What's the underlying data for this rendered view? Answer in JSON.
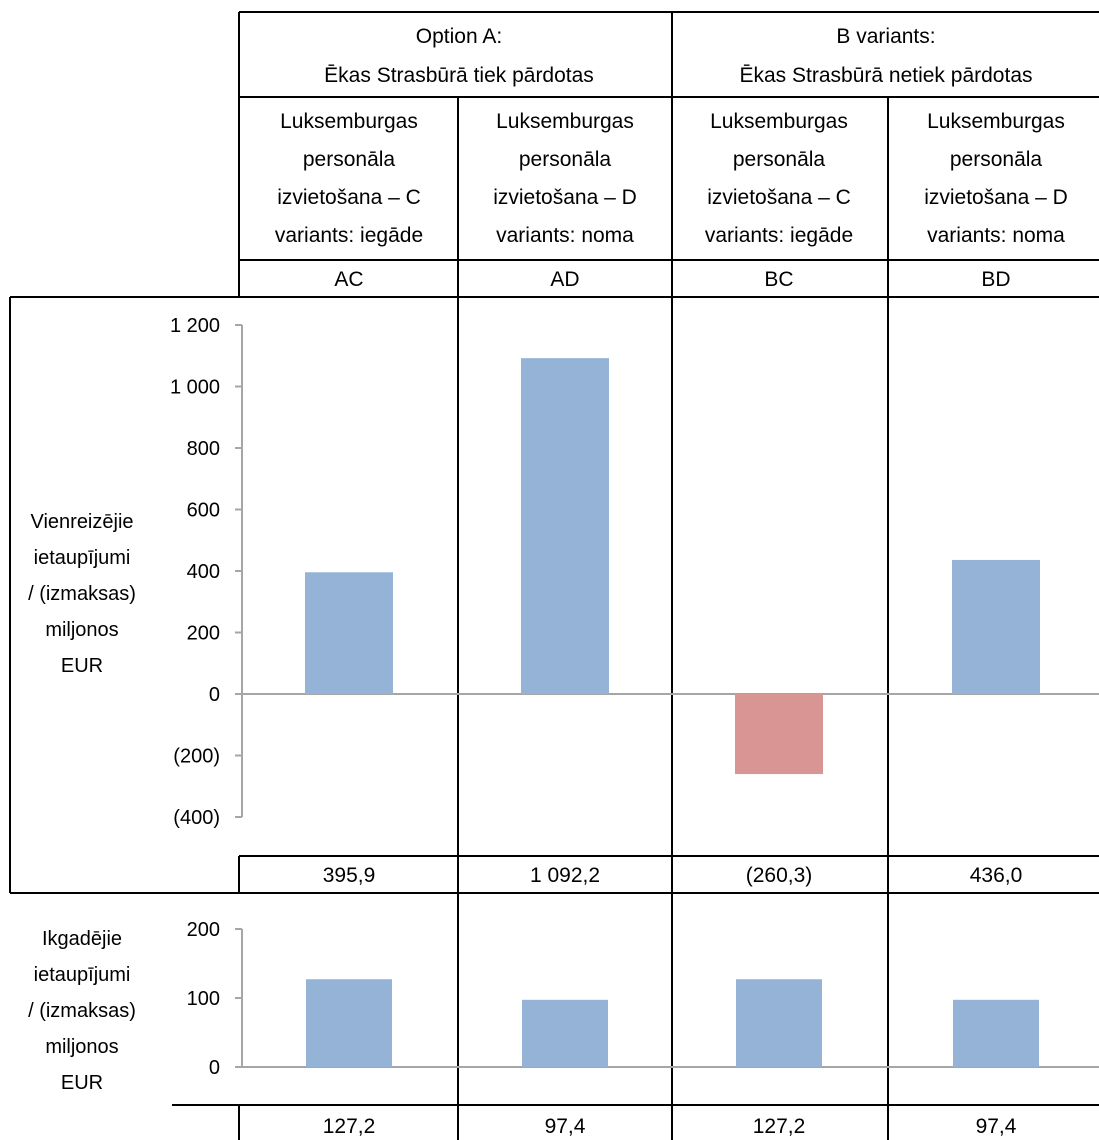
{
  "header": {
    "groups": [
      {
        "title_line1": "Option A:",
        "title_line2": "Ēkas Strasbūrā tiek pārdotas"
      },
      {
        "title_line1": "B variants:",
        "title_line2": "Ēkas Strasbūrā netiek pārdotas"
      }
    ],
    "scenarios": [
      {
        "code": "AC",
        "lines": [
          "Luksemburgas",
          "personāla",
          "izvietošana – C",
          "variants: iegāde"
        ]
      },
      {
        "code": "AD",
        "lines": [
          "Luksemburgas",
          "personāla",
          "izvietošana – D",
          "variants: noma"
        ]
      },
      {
        "code": "BC",
        "lines": [
          "Luksemburgas",
          "personāla",
          "izvietošana – C",
          "variants: iegāde"
        ]
      },
      {
        "code": "BD",
        "lines": [
          "Luksemburgas",
          "personāla",
          "izvietošana – D",
          "variants: noma"
        ]
      }
    ]
  },
  "colors": {
    "positive": "#95b3d7",
    "negative": "#d99594",
    "zero_line": "#a6a6a6"
  },
  "chart_data": [
    {
      "type": "bar",
      "ylabel_lines": [
        "Vienreizējie",
        "ietaupījumi",
        "/ (izmaksas)",
        "miljonos",
        "EUR"
      ],
      "categories": [
        "AC",
        "AD",
        "BC",
        "BD"
      ],
      "values": [
        395.9,
        1092.2,
        -260.3,
        436.0
      ],
      "value_labels": [
        "395,9",
        "1 092,2",
        "(260,3)",
        "436,0"
      ],
      "ylim": [
        -400,
        1200
      ],
      "ticks": [
        1200,
        1000,
        800,
        600,
        400,
        200,
        0,
        -200,
        -400
      ],
      "tick_labels": [
        "1 200",
        "1 000",
        "800",
        "600",
        "400",
        "200",
        "0",
        "(200)",
        "(400)"
      ],
      "grid": false
    },
    {
      "type": "bar",
      "ylabel_lines": [
        "Ikgadējie",
        "ietaupījumi",
        "/ (izmaksas)",
        "miljonos",
        "EUR"
      ],
      "categories": [
        "AC",
        "AD",
        "BC",
        "BD"
      ],
      "values": [
        127.2,
        97.4,
        127.2,
        97.4
      ],
      "value_labels": [
        "127,2",
        "97,4",
        "127,2",
        "97,4"
      ],
      "ylim": [
        0,
        200
      ],
      "ticks": [
        200,
        100,
        0
      ],
      "tick_labels": [
        "200",
        "100",
        "0"
      ],
      "grid": false
    }
  ]
}
